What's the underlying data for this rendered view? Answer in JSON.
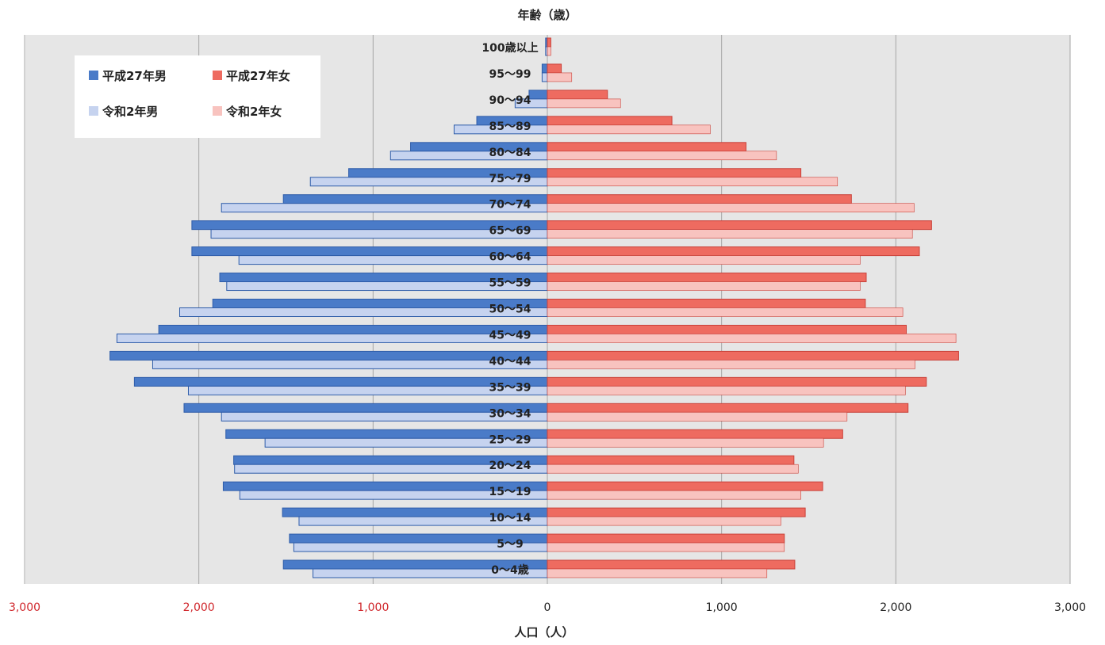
{
  "chart_data": {
    "type": "bar",
    "orientation": "horizontal-pyramid",
    "title": "年齢（歳）",
    "xlabel": "人口（人）",
    "xlim": [
      -3000,
      3000
    ],
    "xticks": [
      {
        "value": -3000,
        "label": "3,000"
      },
      {
        "value": -2000,
        "label": "2,000"
      },
      {
        "value": -1000,
        "label": "1,000"
      },
      {
        "value": 0,
        "label": "0"
      },
      {
        "value": 1000,
        "label": "1,000"
      },
      {
        "value": 2000,
        "label": "2,000"
      },
      {
        "value": 3000,
        "label": "3,000"
      }
    ],
    "grid": true,
    "legend_position": "top-left",
    "categories": [
      "100歳以上",
      "95～99",
      "90～94",
      "85～89",
      "80～84",
      "75～79",
      "70～74",
      "65～69",
      "60～64",
      "55～59",
      "50～54",
      "45～49",
      "40～44",
      "35～39",
      "30～34",
      "25～29",
      "20～24",
      "15～19",
      "10～14",
      "5～9",
      "0～4歳"
    ],
    "series": [
      {
        "name": "平成27年男",
        "side": "left",
        "color": "#4a7bc8",
        "values": [
          10,
          30,
          105,
          405,
          785,
          1140,
          1515,
          2040,
          2040,
          1880,
          1920,
          2230,
          2510,
          2370,
          2085,
          1845,
          1800,
          1860,
          1520,
          1480,
          1515
        ]
      },
      {
        "name": "令和2年男",
        "side": "left",
        "color": "#c6d3ef",
        "values": [
          10,
          30,
          185,
          535,
          900,
          1360,
          1870,
          1930,
          1770,
          1840,
          2110,
          2470,
          2265,
          2060,
          1870,
          1620,
          1795,
          1765,
          1425,
          1455,
          1345
        ]
      },
      {
        "name": "平成27年女",
        "side": "right",
        "color": "#ee6b60",
        "values": [
          20,
          80,
          345,
          715,
          1140,
          1455,
          1745,
          2205,
          2135,
          1830,
          1825,
          2060,
          2360,
          2175,
          2070,
          1695,
          1415,
          1580,
          1480,
          1360,
          1420
        ]
      },
      {
        "name": "令和2年女",
        "side": "right",
        "color": "#f8c3bf",
        "values": [
          20,
          140,
          420,
          935,
          1315,
          1665,
          2105,
          2095,
          1795,
          1795,
          2040,
          2345,
          2110,
          2055,
          1720,
          1585,
          1440,
          1455,
          1340,
          1360,
          1260
        ]
      }
    ]
  },
  "colors": {
    "plot_background": "#e6e6e6",
    "grid": "#a6a6a6",
    "left_tick_color": "#d0262b",
    "right_tick_color": "#222222",
    "male_2015_stroke": "#2f5da9",
    "female_2015_stroke": "#c9423a"
  }
}
